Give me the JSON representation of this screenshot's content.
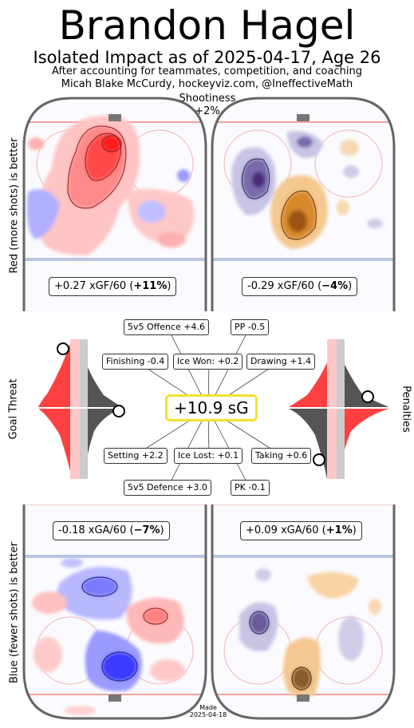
{
  "header": {
    "title": "Brandon Hagel",
    "subtitle": "Isolated Impact as of 2025-04-17, Age 26",
    "credit_line1": "After accounting for teammates, competition, and coaching",
    "credit_line2": "Micah Blake McCurdy, hockeyviz.com, @IneffectiveMath"
  },
  "shootiness": {
    "label": "Shootiness",
    "value": "+2%"
  },
  "side_labels": {
    "top": "Red (more shots) is better",
    "middle_left": "Goal Threat",
    "middle_right": "Penalties",
    "bottom": "Blue (fewer shots) is better"
  },
  "offence": {
    "xgf_5v5": {
      "prefix": "+0.27 xGF/60 (",
      "pct": "+11%",
      "suffix": ")"
    },
    "xgf_pp": {
      "prefix": "-0.29 xGF/60 (",
      "pct": "−4%",
      "suffix": ")"
    }
  },
  "defence": {
    "xga_5v5": {
      "prefix": "-0.18 xGA/60 (",
      "pct": "−7%",
      "suffix": ")"
    },
    "xga_pk": {
      "prefix": "+0.09 xGA/60 (",
      "pct": "+1%",
      "suffix": ")"
    }
  },
  "made": {
    "label": "Made",
    "date": "2025-04-18"
  },
  "chart_data": {
    "type": "other",
    "title": "Brandon Hagel",
    "total": {
      "label": "+10.9 sG",
      "value": 10.9,
      "unit": "sG"
    },
    "components": [
      {
        "name": "5v5 Offence",
        "value": 4.6,
        "label": "5v5 Offence +4.6"
      },
      {
        "name": "PP",
        "value": -0.5,
        "label": "PP -0.5"
      },
      {
        "name": "Finishing",
        "value": -0.4,
        "label": "Finishing -0.4"
      },
      {
        "name": "Ice Won",
        "value": 0.2,
        "label": "Ice Won: +0.2"
      },
      {
        "name": "Drawing",
        "value": 1.4,
        "label": "Drawing +1.4"
      },
      {
        "name": "Setting",
        "value": 2.2,
        "label": "Setting +2.2"
      },
      {
        "name": "Ice Lost",
        "value": 0.1,
        "label": "Ice Lost: +0.1"
      },
      {
        "name": "Taking",
        "value": 0.6,
        "label": "Taking +0.6"
      },
      {
        "name": "5v5 Defence",
        "value": 3.0,
        "label": "5v5 Defence +3.0"
      },
      {
        "name": "PK",
        "value": -0.1,
        "label": "PK -0.1"
      }
    ],
    "rate_impacts": [
      {
        "panel": "5v5 offence",
        "metric": "xGF/60",
        "value": 0.27,
        "percent": 11
      },
      {
        "panel": "PP offence",
        "metric": "xGF/60",
        "value": -0.29,
        "percent": -4
      },
      {
        "panel": "5v5 defence",
        "metric": "xGA/60",
        "value": -0.18,
        "percent": -7
      },
      {
        "panel": "PK defence",
        "metric": "xGA/60",
        "value": 0.09,
        "percent": 1
      }
    ],
    "colors": {
      "more_shots": "#ff2a2a",
      "fewer_shots": "#3b3bff",
      "pp_more": "#c8781e",
      "pp_fewer": "#5a4a8c",
      "highlight": "#f2e22f"
    }
  }
}
